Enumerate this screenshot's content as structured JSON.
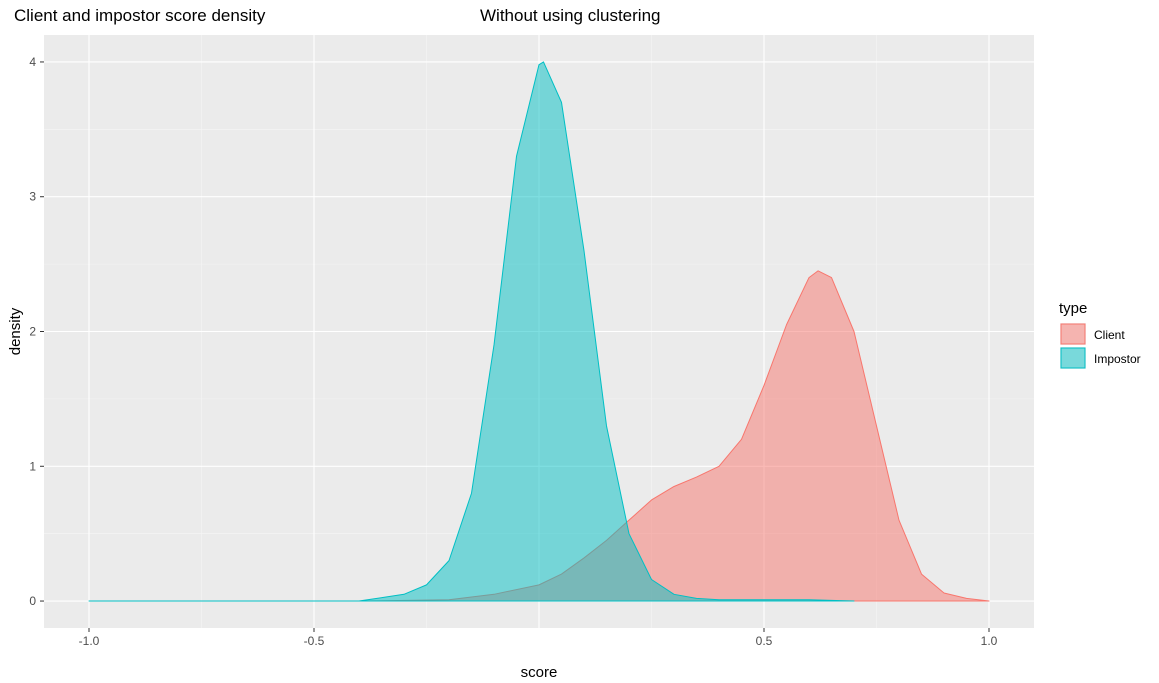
{
  "chart_data": {
    "type": "area",
    "title": "Client and impostor score density",
    "subtitle": "Without using clustering",
    "xlabel": "score",
    "ylabel": "density",
    "xlim": [
      -1.0,
      1.0
    ],
    "ylim": [
      0,
      4
    ],
    "x_ticks": [
      -1.0,
      -0.5,
      0.5,
      1.0
    ],
    "x_tick_labels": [
      "-1.0",
      "-0.5",
      "0.5",
      "1.0"
    ],
    "y_ticks": [
      0,
      1,
      2,
      3,
      4
    ],
    "y_tick_labels": [
      "0",
      "1",
      "2",
      "3",
      "4"
    ],
    "grid": true,
    "legend": {
      "title": "type",
      "position": "right"
    },
    "series": [
      {
        "name": "Client",
        "color": "#F8766D",
        "x": [
          -0.4,
          -0.2,
          -0.1,
          0.0,
          0.05,
          0.1,
          0.15,
          0.2,
          0.25,
          0.3,
          0.35,
          0.4,
          0.45,
          0.5,
          0.55,
          0.6,
          0.62,
          0.65,
          0.7,
          0.75,
          0.8,
          0.85,
          0.9,
          0.95,
          1.0
        ],
        "y": [
          0.0,
          0.01,
          0.05,
          0.12,
          0.2,
          0.32,
          0.45,
          0.6,
          0.75,
          0.85,
          0.92,
          1.0,
          1.2,
          1.6,
          2.05,
          2.4,
          2.45,
          2.4,
          2.0,
          1.3,
          0.6,
          0.2,
          0.06,
          0.02,
          0.0
        ]
      },
      {
        "name": "Impostor",
        "color": "#00BFC4",
        "x": [
          -1.0,
          -0.4,
          -0.3,
          -0.25,
          -0.2,
          -0.15,
          -0.1,
          -0.05,
          0.0,
          0.01,
          0.05,
          0.1,
          0.15,
          0.2,
          0.25,
          0.3,
          0.35,
          0.4,
          0.5,
          0.6,
          0.7
        ],
        "y": [
          0.0,
          0.0,
          0.05,
          0.12,
          0.3,
          0.8,
          1.9,
          3.3,
          3.98,
          4.0,
          3.7,
          2.6,
          1.3,
          0.5,
          0.16,
          0.05,
          0.02,
          0.01,
          0.01,
          0.01,
          0.0
        ]
      }
    ]
  }
}
